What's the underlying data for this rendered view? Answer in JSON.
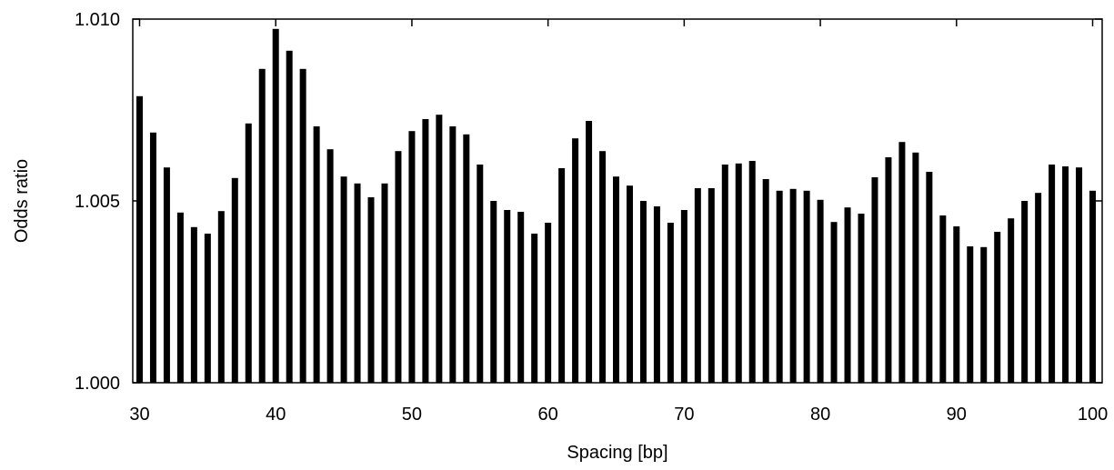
{
  "chart_data": {
    "type": "bar",
    "xlabel": "Spacing [bp]",
    "ylabel": "Odds ratio",
    "xlim": [
      29.5,
      100.7
    ],
    "ylim": [
      1.0,
      1.01
    ],
    "xticks": [
      30,
      40,
      50,
      60,
      70,
      80,
      90,
      100
    ],
    "yticks": [
      1.0,
      1.005,
      1.01
    ],
    "xtick_labels": [
      "30",
      "40",
      "50",
      "60",
      "70",
      "80",
      "90",
      "100"
    ],
    "ytick_labels": [
      "1.000",
      "1.005",
      "1.010"
    ],
    "bar_color": "#000000",
    "grid": false,
    "x": [
      30,
      31,
      32,
      33,
      34,
      35,
      36,
      37,
      38,
      39,
      40,
      41,
      42,
      43,
      44,
      45,
      46,
      47,
      48,
      49,
      50,
      51,
      52,
      53,
      54,
      55,
      56,
      57,
      58,
      59,
      60,
      61,
      62,
      63,
      64,
      65,
      66,
      67,
      68,
      69,
      70,
      71,
      72,
      73,
      74,
      75,
      76,
      77,
      78,
      79,
      80,
      81,
      82,
      83,
      84,
      85,
      86,
      87,
      88,
      89,
      90,
      91,
      92,
      93,
      94,
      95,
      96,
      97,
      98,
      99,
      100
    ],
    "values": [
      1.00788,
      1.00688,
      1.00592,
      1.00468,
      1.00428,
      1.0041,
      1.00472,
      1.00563,
      1.00713,
      1.00863,
      1.00973,
      1.00913,
      1.00863,
      1.00705,
      1.00642,
      1.00567,
      1.00548,
      1.0051,
      1.00548,
      1.00637,
      1.00692,
      1.00725,
      1.00737,
      1.00705,
      1.00683,
      1.006,
      1.005,
      1.00475,
      1.0047,
      1.0041,
      1.0044,
      1.0059,
      1.00672,
      1.0072,
      1.00637,
      1.00567,
      1.00542,
      1.005,
      1.00485,
      1.0044,
      1.00475,
      1.00535,
      1.00535,
      1.006,
      1.00603,
      1.0061,
      1.0056,
      1.00528,
      1.00533,
      1.00528,
      1.00503,
      1.00442,
      1.00482,
      1.00465,
      1.00565,
      1.0062,
      1.00662,
      1.00633,
      1.0058,
      1.0046,
      1.0043,
      1.00375,
      1.00373,
      1.00415,
      1.00452,
      1.005,
      1.00522,
      1.006,
      1.00595,
      1.00592,
      1.00528
    ]
  }
}
